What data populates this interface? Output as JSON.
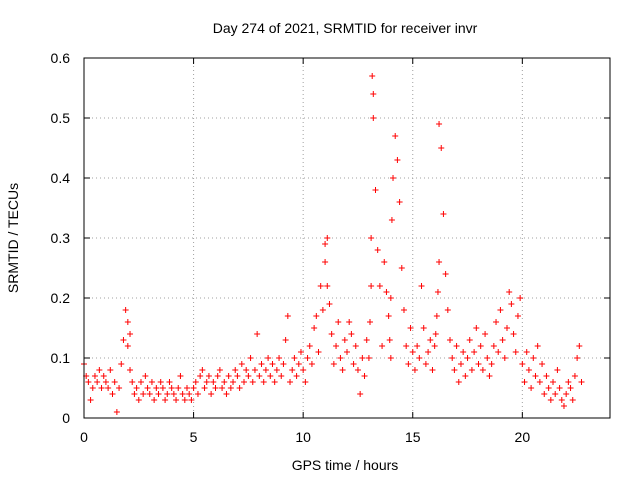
{
  "chart_data": {
    "type": "scatter",
    "title": "Day 274 of 2021, SRMTID for receiver invr",
    "xlabel": "GPS time / hours",
    "ylabel": "SRMTID / TECUs",
    "xlim": [
      0,
      24
    ],
    "ylim": [
      0,
      0.6
    ],
    "xticks": [
      0,
      5,
      10,
      15,
      20
    ],
    "xtick_labels": [
      "0",
      "5",
      "10",
      "15",
      "20"
    ],
    "yticks": [
      0,
      0.1,
      0.2,
      0.3,
      0.4,
      0.5,
      0.6
    ],
    "ytick_labels": [
      "0",
      "0.1",
      "0.2",
      "0.3",
      "0.4",
      "0.5",
      "0.6"
    ],
    "grid": true,
    "marker": "+",
    "color": "#ff0000",
    "series": [
      {
        "name": "SRMTID",
        "x": [
          0.0,
          0.1,
          0.2,
          0.3,
          0.4,
          0.5,
          0.6,
          0.7,
          0.8,
          0.9,
          1.0,
          1.1,
          1.2,
          1.3,
          1.4,
          1.5,
          1.6,
          1.7,
          1.8,
          1.9,
          2.0,
          2.0,
          2.1,
          2.1,
          2.2,
          2.3,
          2.4,
          2.5,
          2.6,
          2.7,
          2.8,
          2.9,
          3.0,
          3.1,
          3.2,
          3.3,
          3.4,
          3.5,
          3.6,
          3.7,
          3.8,
          3.9,
          4.0,
          4.1,
          4.2,
          4.3,
          4.4,
          4.5,
          4.6,
          4.7,
          4.8,
          4.9,
          5.0,
          5.1,
          5.2,
          5.3,
          5.4,
          5.5,
          5.6,
          5.7,
          5.8,
          5.9,
          6.0,
          6.1,
          6.2,
          6.3,
          6.4,
          6.5,
          6.6,
          6.7,
          6.8,
          6.9,
          7.0,
          7.1,
          7.2,
          7.3,
          7.4,
          7.5,
          7.6,
          7.7,
          7.8,
          7.9,
          8.0,
          8.1,
          8.2,
          8.3,
          8.4,
          8.5,
          8.6,
          8.7,
          8.8,
          8.9,
          9.0,
          9.1,
          9.2,
          9.3,
          9.4,
          9.5,
          9.6,
          9.7,
          9.8,
          9.9,
          10.0,
          10.1,
          10.2,
          10.3,
          10.4,
          10.5,
          10.6,
          10.7,
          10.8,
          10.9,
          11.0,
          11.0,
          11.1,
          11.1,
          11.2,
          11.3,
          11.4,
          11.5,
          11.6,
          11.7,
          11.8,
          11.9,
          12.0,
          12.1,
          12.2,
          12.3,
          12.4,
          12.5,
          12.6,
          12.7,
          12.8,
          12.9,
          13.0,
          13.05,
          13.1,
          13.1,
          13.15,
          13.2,
          13.2,
          13.3,
          13.4,
          13.5,
          13.6,
          13.7,
          13.8,
          13.9,
          13.95,
          14.0,
          14.0,
          14.05,
          14.1,
          14.2,
          14.3,
          14.4,
          14.5,
          14.6,
          14.7,
          14.8,
          14.9,
          15.0,
          15.1,
          15.2,
          15.3,
          15.4,
          15.5,
          15.6,
          15.7,
          15.8,
          15.9,
          16.0,
          16.05,
          16.1,
          16.15,
          16.2,
          16.2,
          16.3,
          16.4,
          16.5,
          16.6,
          16.7,
          16.8,
          16.9,
          17.0,
          17.1,
          17.2,
          17.3,
          17.4,
          17.5,
          17.6,
          17.7,
          17.8,
          17.9,
          18.0,
          18.1,
          18.2,
          18.3,
          18.4,
          18.5,
          18.6,
          18.7,
          18.8,
          18.9,
          19.0,
          19.1,
          19.2,
          19.3,
          19.4,
          19.5,
          19.6,
          19.7,
          19.8,
          19.9,
          20.0,
          20.1,
          20.2,
          20.3,
          20.4,
          20.5,
          20.6,
          20.7,
          20.8,
          20.9,
          21.0,
          21.1,
          21.2,
          21.3,
          21.4,
          21.5,
          21.6,
          21.7,
          21.8,
          21.9,
          22.0,
          22.1,
          22.2,
          22.3,
          22.4,
          22.5,
          22.6,
          22.7
        ],
        "y": [
          0.09,
          0.07,
          0.06,
          0.03,
          0.05,
          0.07,
          0.06,
          0.08,
          0.05,
          0.07,
          0.06,
          0.05,
          0.08,
          0.04,
          0.06,
          0.01,
          0.05,
          0.09,
          0.13,
          0.18,
          0.16,
          0.12,
          0.14,
          0.08,
          0.06,
          0.04,
          0.05,
          0.03,
          0.06,
          0.04,
          0.07,
          0.05,
          0.04,
          0.06,
          0.03,
          0.05,
          0.04,
          0.06,
          0.05,
          0.03,
          0.04,
          0.06,
          0.05,
          0.04,
          0.03,
          0.05,
          0.07,
          0.04,
          0.03,
          0.05,
          0.04,
          0.03,
          0.05,
          0.06,
          0.04,
          0.07,
          0.08,
          0.05,
          0.06,
          0.07,
          0.04,
          0.06,
          0.05,
          0.07,
          0.08,
          0.05,
          0.06,
          0.04,
          0.07,
          0.05,
          0.06,
          0.08,
          0.07,
          0.05,
          0.09,
          0.06,
          0.08,
          0.07,
          0.1,
          0.06,
          0.08,
          0.14,
          0.07,
          0.09,
          0.06,
          0.08,
          0.1,
          0.07,
          0.09,
          0.06,
          0.08,
          0.1,
          0.07,
          0.09,
          0.13,
          0.17,
          0.06,
          0.08,
          0.1,
          0.07,
          0.09,
          0.11,
          0.08,
          0.06,
          0.1,
          0.12,
          0.09,
          0.15,
          0.17,
          0.11,
          0.22,
          0.18,
          0.26,
          0.29,
          0.3,
          0.22,
          0.19,
          0.14,
          0.09,
          0.12,
          0.16,
          0.1,
          0.08,
          0.13,
          0.11,
          0.16,
          0.14,
          0.09,
          0.12,
          0.08,
          0.04,
          0.1,
          0.07,
          0.13,
          0.1,
          0.16,
          0.22,
          0.3,
          0.57,
          0.5,
          0.54,
          0.38,
          0.28,
          0.22,
          0.12,
          0.26,
          0.21,
          0.17,
          0.13,
          0.1,
          0.2,
          0.33,
          0.4,
          0.47,
          0.43,
          0.36,
          0.25,
          0.18,
          0.12,
          0.09,
          0.15,
          0.11,
          0.08,
          0.12,
          0.1,
          0.22,
          0.15,
          0.09,
          0.11,
          0.13,
          0.08,
          0.12,
          0.14,
          0.17,
          0.21,
          0.26,
          0.49,
          0.45,
          0.34,
          0.24,
          0.18,
          0.13,
          0.1,
          0.08,
          0.12,
          0.06,
          0.09,
          0.11,
          0.07,
          0.1,
          0.13,
          0.08,
          0.11,
          0.15,
          0.09,
          0.12,
          0.08,
          0.14,
          0.1,
          0.07,
          0.09,
          0.12,
          0.16,
          0.11,
          0.18,
          0.13,
          0.1,
          0.15,
          0.21,
          0.19,
          0.14,
          0.11,
          0.17,
          0.2,
          0.09,
          0.06,
          0.11,
          0.08,
          0.05,
          0.1,
          0.07,
          0.12,
          0.06,
          0.09,
          0.04,
          0.07,
          0.05,
          0.03,
          0.06,
          0.04,
          0.08,
          0.05,
          0.03,
          0.02,
          0.04,
          0.06,
          0.05,
          0.03,
          0.07,
          0.1,
          0.12,
          0.06
        ]
      }
    ]
  }
}
